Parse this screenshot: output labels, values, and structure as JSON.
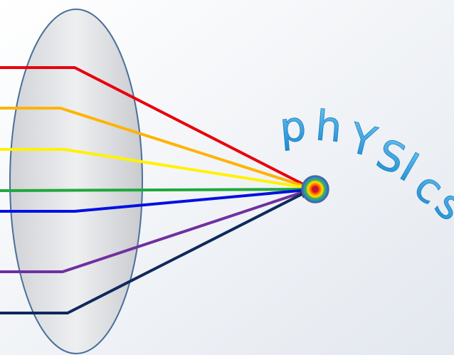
{
  "title": {
    "letters": [
      "p",
      "h",
      "Y",
      "S",
      "I",
      "c",
      "s"
    ]
  }
}
